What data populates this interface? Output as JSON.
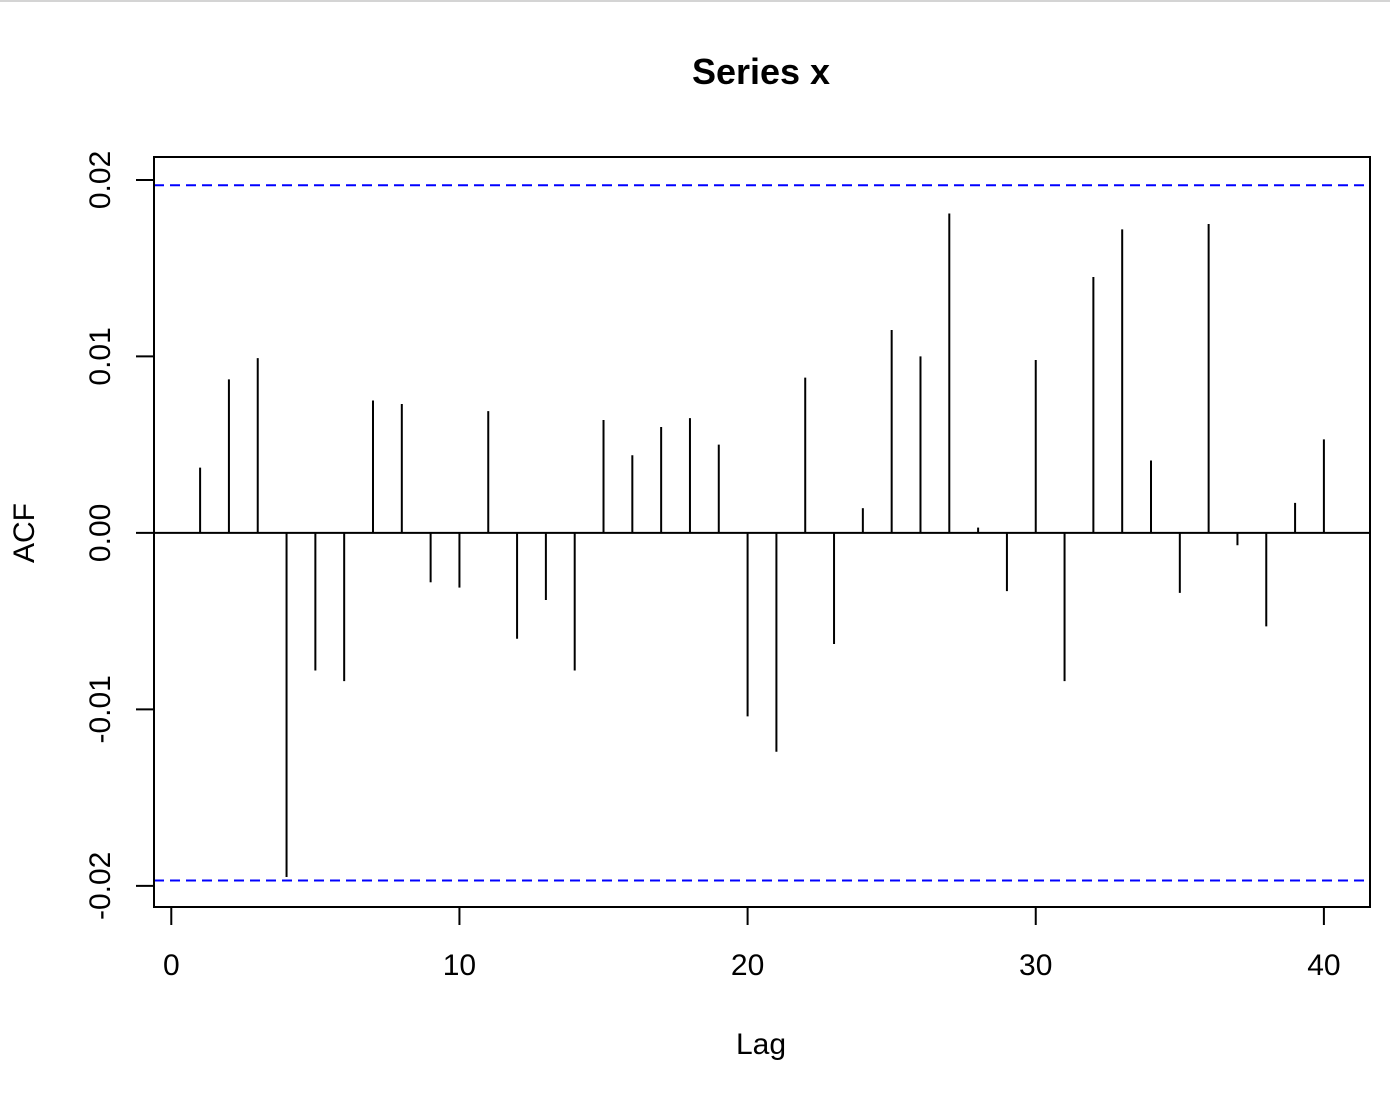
{
  "chart_data": {
    "type": "bar",
    "title": "Series  x",
    "xlabel": "Lag",
    "ylabel": "ACF",
    "xlim": [
      -0.6,
      41.6
    ],
    "ylim": [
      -0.0212,
      0.0213
    ],
    "x_ticks": [
      0,
      10,
      20,
      30,
      40
    ],
    "x_tick_labels": [
      "0",
      "10",
      "20",
      "30",
      "40"
    ],
    "y_ticks": [
      -0.02,
      -0.01,
      0.0,
      0.01,
      0.02
    ],
    "y_tick_labels": [
      "-0.02",
      "-0.01",
      "0.00",
      "0.01",
      "0.02"
    ],
    "grid": false,
    "legend": "none",
    "confidence_bound": 0.0197,
    "colors": {
      "spikes": "#000000",
      "bounds": "#0000ff",
      "zero_line": "#000000"
    },
    "series": [
      {
        "x": [
          1,
          2,
          3,
          4,
          5,
          6,
          7,
          8,
          9,
          10,
          11,
          12,
          13,
          14,
          15,
          16,
          17,
          18,
          19,
          20,
          21,
          22,
          23,
          24,
          25,
          26,
          27,
          28,
          29,
          30,
          31,
          32,
          33,
          34,
          35,
          36,
          37,
          38,
          39,
          40
        ],
        "values": [
          0.0037,
          0.0087,
          0.0099,
          -0.0195,
          -0.0078,
          -0.0084,
          0.0075,
          0.0073,
          -0.0028,
          -0.0031,
          0.0069,
          -0.006,
          -0.0038,
          -0.0078,
          0.0064,
          0.0044,
          0.006,
          0.0065,
          0.005,
          -0.0104,
          -0.0124,
          0.0088,
          -0.0063,
          0.0014,
          0.0115,
          0.01,
          0.0181,
          0.0003,
          -0.0033,
          0.0098,
          -0.0084,
          0.0145,
          0.0172,
          0.0041,
          -0.0034,
          0.0175,
          -0.0007,
          -0.0053,
          0.0017,
          0.0053
        ]
      }
    ]
  }
}
